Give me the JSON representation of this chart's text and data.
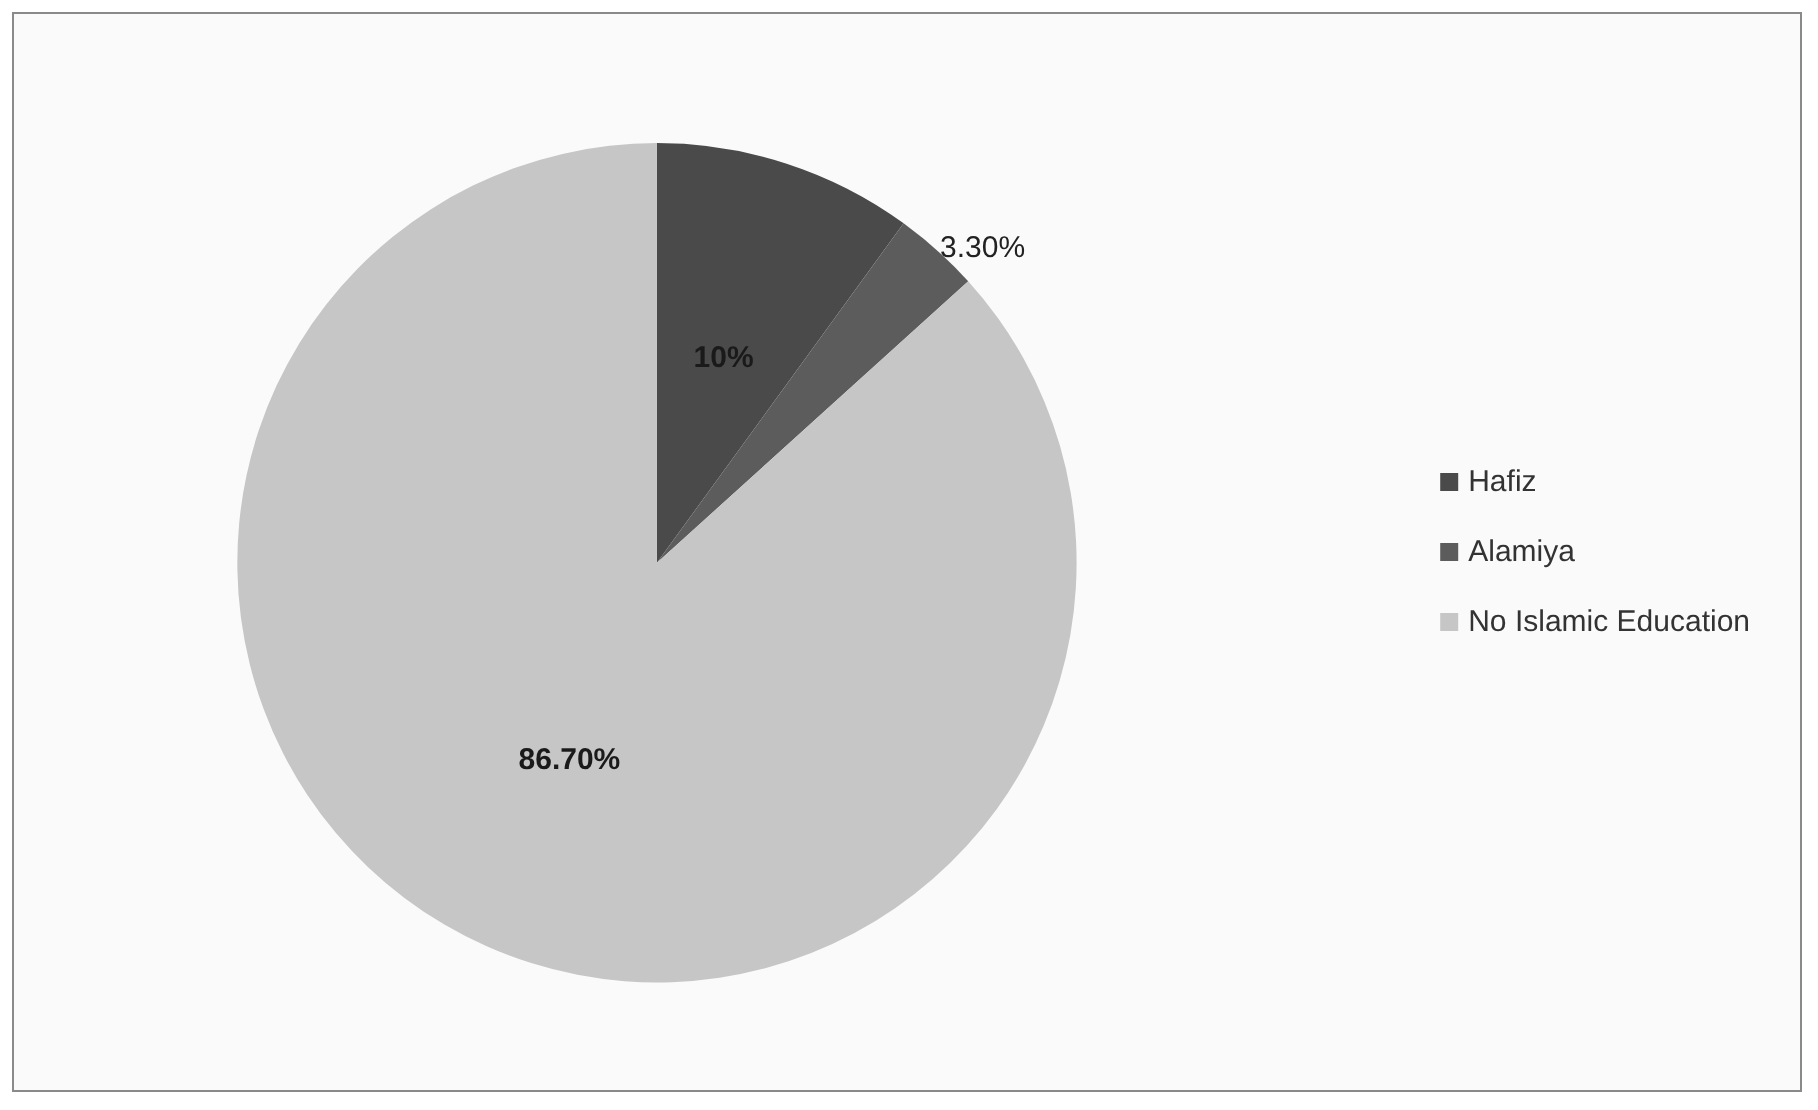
{
  "chart_data": {
    "type": "pie",
    "categories": [
      "Hafiz",
      "Alamiya",
      "No Islamic Education"
    ],
    "values": [
      10,
      3.3,
      86.7
    ],
    "value_labels": [
      "10%",
      "3.30%",
      "86.70%"
    ],
    "colors": [
      "#4a4a4a",
      "#5c5c5c",
      "#c6c6c6"
    ],
    "legend": "right"
  }
}
